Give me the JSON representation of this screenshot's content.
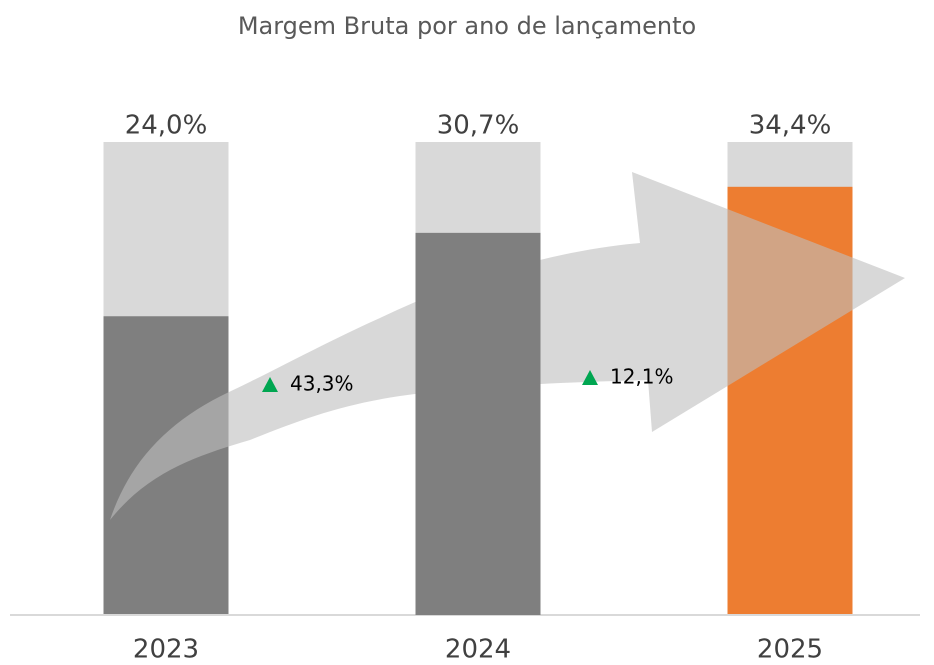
{
  "chart_data": {
    "type": "bar",
    "title": "Margem Bruta por ano de lançamento",
    "categories": [
      "2023",
      "2024",
      "2025"
    ],
    "values": [
      24.0,
      30.7,
      34.4
    ],
    "value_labels": [
      "24,0%",
      "30,7%",
      "34,4%"
    ],
    "colors": [
      "#7f7f7f",
      "#7f7f7f",
      "#ed7d31"
    ],
    "background_color": "#d9d9d9",
    "ylim": [
      0,
      38
    ],
    "annotations": [
      "43,3%",
      "12,1%"
    ],
    "annotation_color": "#00a651"
  }
}
